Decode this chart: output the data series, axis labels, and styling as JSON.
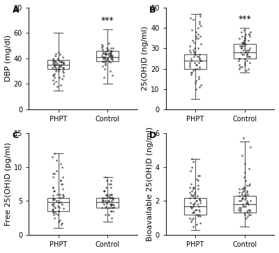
{
  "panels": [
    {
      "label": "A",
      "ylabel": "DBP (mg/dl)",
      "ylim": [
        0,
        80
      ],
      "yticks": [
        0,
        20,
        40,
        60,
        80
      ],
      "groups": [
        "PHPT",
        "Control"
      ],
      "significance": "***",
      "sig_on_group": 1,
      "box": {
        "PHPT": {
          "median": 35,
          "q1": 32,
          "q3": 39,
          "whislo": 15,
          "whishi": 60
        },
        "Control": {
          "median": 41,
          "q1": 38,
          "q3": 46,
          "whislo": 20,
          "whishi": 63
        }
      },
      "scatter_PHPT": [
        35,
        33,
        37,
        34,
        36,
        32,
        38,
        30,
        35,
        34,
        33,
        36,
        37,
        38,
        35,
        34,
        33,
        32,
        36,
        37,
        38,
        39,
        30,
        31,
        40,
        35,
        34,
        33,
        32,
        36,
        25,
        28,
        27,
        29,
        26,
        24,
        22,
        20,
        19,
        18,
        38,
        39,
        40,
        41,
        42,
        43,
        44,
        45,
        30,
        35,
        37,
        38,
        32,
        33,
        34,
        36,
        27,
        25,
        23
      ],
      "scatter_Control": [
        41,
        43,
        40,
        42,
        44,
        38,
        39,
        45,
        46,
        47,
        48,
        40,
        41,
        42,
        43,
        44,
        45,
        46,
        38,
        39,
        40,
        41,
        42,
        43,
        44,
        45,
        35,
        37,
        38,
        39,
        40,
        41,
        42,
        43,
        44,
        45,
        46,
        47,
        48,
        49,
        50,
        51,
        52,
        38,
        40,
        42,
        44,
        46,
        30,
        32,
        34,
        36,
        38,
        40,
        42,
        44,
        46,
        48,
        25,
        27
      ]
    },
    {
      "label": "B",
      "ylabel": "25(OH)D (ng/ml)",
      "ylim": [
        0,
        50
      ],
      "yticks": [
        0,
        10,
        20,
        30,
        40,
        50
      ],
      "groups": [
        "PHPT",
        "Control"
      ],
      "significance": "***",
      "sig_on_group": 1,
      "box": {
        "PHPT": {
          "median": 24,
          "q1": 20,
          "q3": 27,
          "whislo": 5,
          "whishi": 47
        },
        "Control": {
          "median": 28,
          "q1": 25,
          "q3": 32,
          "whislo": 18,
          "whishi": 40
        }
      },
      "scatter_PHPT": [
        24,
        22,
        26,
        20,
        18,
        25,
        23,
        27,
        28,
        15,
        16,
        17,
        18,
        19,
        20,
        21,
        22,
        23,
        24,
        25,
        26,
        27,
        28,
        29,
        30,
        10,
        11,
        12,
        13,
        14,
        35,
        36,
        37,
        38,
        39,
        40,
        41,
        42,
        43,
        44,
        45,
        46,
        47,
        20,
        21,
        22,
        23,
        24,
        25,
        26,
        27,
        28,
        29,
        30,
        31,
        32,
        33,
        34,
        35,
        36
      ],
      "scatter_Control": [
        28,
        30,
        27,
        29,
        31,
        32,
        33,
        25,
        26,
        27,
        28,
        29,
        30,
        31,
        32,
        33,
        34,
        35,
        36,
        37,
        38,
        39,
        20,
        21,
        22,
        23,
        24,
        25,
        26,
        27,
        28,
        29,
        30,
        31,
        32,
        33,
        34,
        35,
        36,
        37,
        38,
        19,
        20,
        21,
        22,
        23,
        24,
        25,
        26,
        27,
        28,
        29,
        30,
        31,
        32,
        33,
        34,
        35,
        36,
        37
      ]
    },
    {
      "label": "C",
      "ylabel": "Free 25(OH)D (pg/ml)",
      "ylim": [
        0,
        15
      ],
      "yticks": [
        0,
        5,
        10,
        15
      ],
      "groups": [
        "PHPT",
        "Control"
      ],
      "significance": null,
      "sig_on_group": null,
      "box": {
        "PHPT": {
          "median": 4.8,
          "q1": 3.5,
          "q3": 5.5,
          "whislo": 1.0,
          "whishi": 12.0
        },
        "Control": {
          "median": 4.8,
          "q1": 4.0,
          "q3": 5.5,
          "whislo": 2.0,
          "whishi": 8.5
        }
      },
      "scatter_PHPT": [
        4.8,
        3.5,
        5.5,
        4.0,
        5.0,
        3.0,
        6.0,
        4.5,
        5.2,
        3.8,
        4.2,
        5.8,
        3.2,
        6.5,
        4.1,
        5.9,
        3.6,
        4.7,
        5.3,
        3.9,
        4.4,
        5.6,
        3.3,
        6.8,
        4.3,
        5.1,
        3.7,
        4.6,
        5.4,
        3.4,
        1.5,
        2.0,
        2.5,
        1.8,
        2.2,
        8.0,
        7.5,
        8.5,
        7.0,
        9.0,
        6.0,
        6.5,
        7.0,
        7.5,
        8.0,
        8.5,
        9.0,
        9.5,
        10.0,
        10.5,
        11.0,
        11.5,
        12.0,
        4.0,
        4.5,
        5.0,
        5.5,
        6.0,
        3.0,
        3.5
      ],
      "scatter_Control": [
        4.8,
        5.0,
        4.5,
        5.2,
        4.2,
        5.5,
        4.0,
        5.8,
        4.3,
        5.1,
        4.7,
        5.3,
        4.1,
        5.6,
        4.4,
        5.9,
        4.6,
        5.4,
        4.9,
        5.7,
        4.0,
        4.5,
        5.0,
        5.5,
        3.5,
        4.0,
        4.5,
        5.0,
        5.5,
        6.0,
        3.0,
        3.5,
        4.0,
        4.5,
        5.0,
        5.5,
        6.0,
        6.5,
        7.0,
        7.5,
        8.0,
        8.5,
        2.5,
        3.0,
        3.5,
        4.0,
        4.5,
        5.0,
        5.5,
        6.0,
        6.5,
        7.0,
        7.5,
        8.0,
        4.0,
        4.5,
        5.0,
        5.5,
        6.0,
        6.5
      ]
    },
    {
      "label": "D",
      "ylabel": "Bioavailable 25(OH)D (ng/ml)",
      "ylim": [
        0,
        6
      ],
      "yticks": [
        0,
        2,
        4,
        6
      ],
      "groups": [
        "PHPT",
        "Control"
      ],
      "significance": null,
      "sig_on_group": null,
      "box": {
        "PHPT": {
          "median": 1.7,
          "q1": 1.2,
          "q3": 2.2,
          "whislo": 0.3,
          "whishi": 4.5
        },
        "Control": {
          "median": 1.8,
          "q1": 1.3,
          "q3": 2.3,
          "whislo": 0.5,
          "whishi": 5.5
        }
      },
      "scatter_PHPT": [
        1.7,
        1.2,
        2.2,
        1.5,
        1.9,
        1.0,
        2.5,
        1.4,
        2.0,
        1.3,
        1.8,
        2.3,
        1.1,
        2.7,
        1.6,
        2.1,
        1.2,
        1.9,
        2.4,
        1.3,
        1.7,
        2.2,
        1.0,
        2.8,
        1.5,
        2.0,
        1.1,
        1.8,
        2.3,
        1.4,
        0.5,
        0.7,
        0.8,
        0.6,
        0.9,
        3.5,
        3.0,
        3.5,
        4.0,
        4.5,
        3.2,
        2.8,
        3.3,
        3.8,
        4.3,
        1.5,
        1.6,
        1.7,
        1.8,
        1.9,
        2.0,
        2.1,
        2.2,
        2.3,
        2.4,
        2.5,
        2.6,
        2.7,
        2.8,
        2.9
      ],
      "scatter_Control": [
        1.8,
        2.0,
        1.5,
        2.2,
        1.3,
        2.5,
        1.6,
        2.3,
        1.4,
        2.1,
        1.7,
        2.4,
        1.2,
        2.6,
        1.9,
        2.8,
        1.5,
        2.3,
        2.0,
        2.7,
        1.0,
        1.5,
        2.0,
        2.5,
        1.2,
        1.7,
        2.2,
        2.7,
        1.4,
        1.9,
        2.4,
        2.9,
        1.1,
        1.6,
        2.1,
        2.6,
        1.3,
        1.8,
        2.3,
        2.8,
        1.5,
        2.0,
        2.5,
        3.0,
        1.2,
        1.7,
        2.2,
        2.7,
        3.2,
        3.7,
        4.2,
        4.7,
        5.2,
        5.7,
        1.4,
        1.9,
        2.4,
        2.9,
        3.4,
        3.9
      ]
    }
  ],
  "box_color": "#ffffff",
  "box_linecolor": "#555555",
  "scatter_color": "#333333",
  "scatter_size": 4,
  "scatter_alpha": 0.7,
  "median_color": "#555555",
  "whisker_color": "#555555",
  "cap_color": "#555555",
  "background_color": "#ffffff",
  "font_family": "Arial",
  "label_fontsize": 8,
  "tick_fontsize": 7,
  "panel_label_fontsize": 9,
  "sig_fontsize": 9
}
